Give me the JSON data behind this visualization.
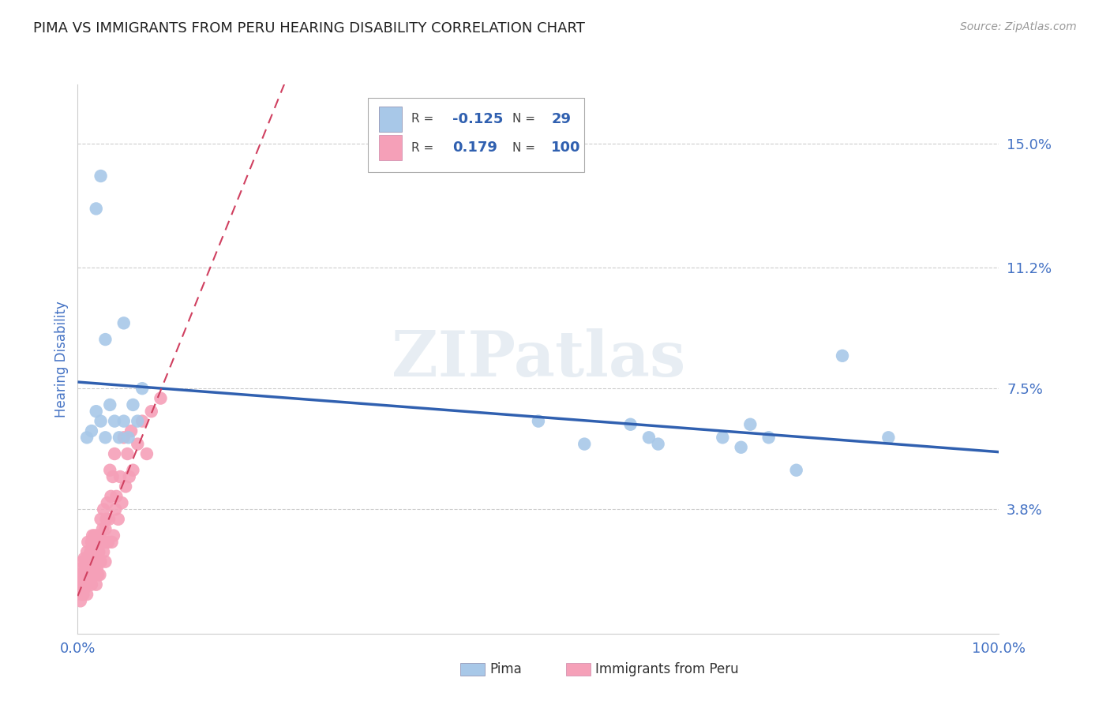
{
  "title": "PIMA VS IMMIGRANTS FROM PERU HEARING DISABILITY CORRELATION CHART",
  "source": "Source: ZipAtlas.com",
  "ylabel": "Hearing Disability",
  "xlim": [
    0.0,
    1.0
  ],
  "ylim": [
    0.0,
    0.168
  ],
  "yticks": [
    0.038,
    0.075,
    0.112,
    0.15
  ],
  "ytick_labels": [
    "3.8%",
    "7.5%",
    "11.2%",
    "15.0%"
  ],
  "xticks": [
    0.0,
    0.25,
    0.5,
    0.75,
    1.0
  ],
  "xtick_labels": [
    "0.0%",
    "",
    "",
    "",
    "100.0%"
  ],
  "pima_color": "#a8c8e8",
  "peru_color": "#f5a0b8",
  "pima_line_color": "#3060b0",
  "peru_line_color": "#d04060",
  "grid_color": "#cccccc",
  "R_pima": -0.125,
  "N_pima": 29,
  "R_peru": 0.179,
  "N_peru": 100,
  "pima_scatter_x": [
    0.01,
    0.015,
    0.02,
    0.025,
    0.03,
    0.03,
    0.035,
    0.04,
    0.045,
    0.05,
    0.05,
    0.055,
    0.06,
    0.065,
    0.07,
    0.02,
    0.025,
    0.5,
    0.55,
    0.6,
    0.62,
    0.63,
    0.7,
    0.72,
    0.73,
    0.75,
    0.78,
    0.83,
    0.88
  ],
  "pima_scatter_y": [
    0.06,
    0.062,
    0.068,
    0.065,
    0.06,
    0.09,
    0.07,
    0.065,
    0.06,
    0.065,
    0.095,
    0.06,
    0.07,
    0.065,
    0.075,
    0.13,
    0.14,
    0.065,
    0.058,
    0.064,
    0.06,
    0.058,
    0.06,
    0.057,
    0.064,
    0.06,
    0.05,
    0.085,
    0.06
  ],
  "peru_scatter_x": [
    0.002,
    0.003,
    0.004,
    0.005,
    0.005,
    0.006,
    0.007,
    0.007,
    0.008,
    0.008,
    0.009,
    0.009,
    0.01,
    0.01,
    0.01,
    0.011,
    0.011,
    0.012,
    0.012,
    0.013,
    0.013,
    0.014,
    0.014,
    0.015,
    0.015,
    0.015,
    0.016,
    0.016,
    0.017,
    0.017,
    0.018,
    0.018,
    0.019,
    0.019,
    0.02,
    0.02,
    0.02,
    0.021,
    0.021,
    0.022,
    0.022,
    0.023,
    0.023,
    0.024,
    0.024,
    0.025,
    0.025,
    0.026,
    0.027,
    0.028,
    0.028,
    0.029,
    0.03,
    0.03,
    0.031,
    0.032,
    0.033,
    0.034,
    0.035,
    0.036,
    0.037,
    0.038,
    0.039,
    0.04,
    0.041,
    0.042,
    0.044,
    0.046,
    0.048,
    0.05,
    0.052,
    0.054,
    0.056,
    0.058,
    0.06,
    0.065,
    0.07,
    0.075,
    0.08,
    0.09,
    0.003,
    0.004,
    0.005,
    0.006,
    0.007,
    0.008,
    0.009,
    0.01,
    0.011,
    0.012,
    0.013,
    0.014,
    0.015,
    0.016,
    0.017,
    0.018,
    0.019,
    0.02,
    0.022,
    0.025
  ],
  "peru_scatter_y": [
    0.018,
    0.016,
    0.02,
    0.022,
    0.015,
    0.018,
    0.023,
    0.016,
    0.02,
    0.014,
    0.022,
    0.017,
    0.025,
    0.018,
    0.012,
    0.02,
    0.028,
    0.022,
    0.016,
    0.024,
    0.018,
    0.025,
    0.019,
    0.028,
    0.02,
    0.015,
    0.022,
    0.03,
    0.018,
    0.025,
    0.02,
    0.03,
    0.018,
    0.025,
    0.022,
    0.03,
    0.015,
    0.025,
    0.02,
    0.028,
    0.018,
    0.025,
    0.022,
    0.03,
    0.018,
    0.035,
    0.022,
    0.028,
    0.032,
    0.025,
    0.038,
    0.028,
    0.032,
    0.022,
    0.035,
    0.04,
    0.028,
    0.035,
    0.05,
    0.042,
    0.028,
    0.048,
    0.03,
    0.055,
    0.038,
    0.042,
    0.035,
    0.048,
    0.04,
    0.06,
    0.045,
    0.055,
    0.048,
    0.062,
    0.05,
    0.058,
    0.065,
    0.055,
    0.068,
    0.072,
    0.01,
    0.012,
    0.014,
    0.012,
    0.016,
    0.015,
    0.018,
    0.016,
    0.018,
    0.02,
    0.022,
    0.025,
    0.02,
    0.023,
    0.025,
    0.022,
    0.024,
    0.026,
    0.024,
    0.03
  ],
  "watermark": "ZIPatlas",
  "title_color": "#222222",
  "axis_label_color": "#4472c4",
  "tick_color": "#4472c4",
  "background_color": "#ffffff"
}
